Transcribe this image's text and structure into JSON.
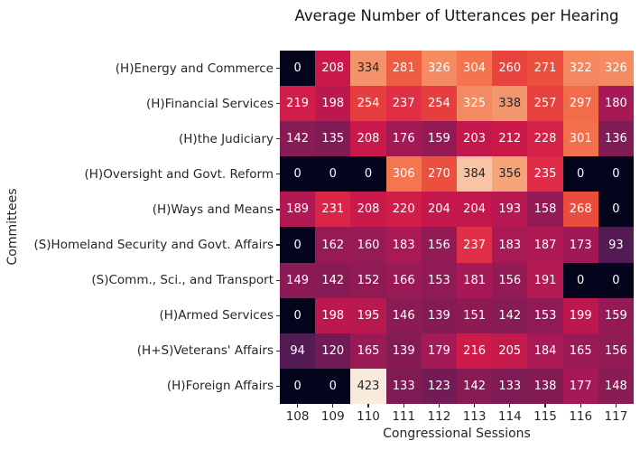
{
  "chart_data": {
    "type": "heatmap",
    "title": "Average Number of Utterances per Hearing",
    "xlabel": "Congressional Sessions",
    "ylabel": "Committees",
    "x_categories": [
      "108",
      "109",
      "110",
      "111",
      "112",
      "113",
      "114",
      "115",
      "116",
      "117"
    ],
    "y_categories": [
      "(H)Energy and Commerce",
      "(H)Financial Services",
      "(H)the Judiciary",
      "(H)Oversight and Govt. Reform",
      "(H)Ways and Means",
      "(S)Homeland Security and Govt. Affairs",
      "(S)Comm., Sci., and Transport",
      "(H)Armed Services",
      "(H+S)Veterans' Affairs",
      "(H)Foreign Affairs"
    ],
    "values": [
      [
        0,
        208,
        334,
        281,
        326,
        304,
        260,
        271,
        322,
        326
      ],
      [
        219,
        198,
        254,
        237,
        254,
        325,
        338,
        257,
        297,
        180
      ],
      [
        142,
        135,
        208,
        176,
        159,
        203,
        212,
        228,
        301,
        136
      ],
      [
        0,
        0,
        0,
        306,
        270,
        384,
        356,
        235,
        0,
        0
      ],
      [
        189,
        231,
        208,
        220,
        204,
        204,
        193,
        158,
        268,
        0
      ],
      [
        0,
        162,
        160,
        183,
        156,
        237,
        183,
        187,
        173,
        93
      ],
      [
        149,
        142,
        152,
        166,
        153,
        181,
        156,
        191,
        0,
        0
      ],
      [
        0,
        198,
        195,
        146,
        139,
        151,
        142,
        153,
        199,
        159
      ],
      [
        94,
        120,
        165,
        139,
        179,
        216,
        205,
        184,
        165,
        156
      ],
      [
        0,
        0,
        423,
        133,
        123,
        142,
        133,
        138,
        177,
        148
      ]
    ],
    "vmin": 0,
    "vmax": 423,
    "annotated": true,
    "grid": false,
    "legend": "none",
    "colormap": {
      "name": "rocket",
      "stops": [
        [
          0.0,
          "#05041D"
        ],
        [
          0.11,
          "#2A103C"
        ],
        [
          0.222,
          "#541A53"
        ],
        [
          0.284,
          "#701B55"
        ],
        [
          0.33,
          "#851B53"
        ],
        [
          0.37,
          "#921A55"
        ],
        [
          0.433,
          "#A91956"
        ],
        [
          0.492,
          "#C9184A"
        ],
        [
          0.54,
          "#D62148"
        ],
        [
          0.56,
          "#E02F46"
        ],
        [
          0.615,
          "#E8433C"
        ],
        [
          0.664,
          "#EE5C41"
        ],
        [
          0.723,
          "#F3764F"
        ],
        [
          0.79,
          "#F4936B"
        ],
        [
          0.842,
          "#F5A379"
        ],
        [
          0.908,
          "#F7C5A4"
        ],
        [
          1.0,
          "#F8EADC"
        ]
      ]
    },
    "annotation_colors": {
      "text_on_dark": "#FFFFFF",
      "text_on_light": "#262626",
      "luminance_threshold": 0.408
    },
    "axes_colors": {
      "tick_color": "#262626",
      "label_color": "#262626",
      "title_color": "#141414",
      "background": "#FFFFFF"
    }
  }
}
